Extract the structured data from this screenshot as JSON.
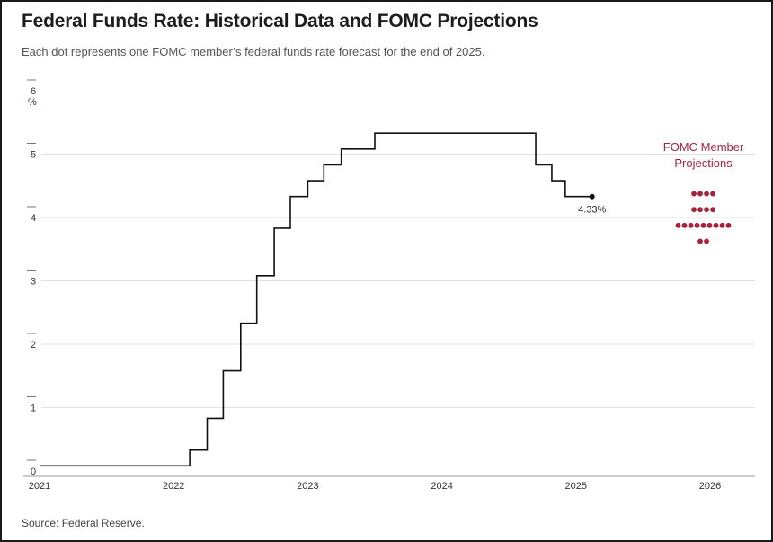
{
  "title": "Federal Funds Rate: Historical Data and FOMC Projections",
  "subtitle": "Each dot represents one FOMC member’s federal funds rate forecast for the end of 2025.",
  "source": "Source: Federal Reserve.",
  "colors": {
    "line": "#111111",
    "dots": "#a8233a",
    "grid": "#e2e2e2"
  },
  "chart_data": {
    "type": "line",
    "title": "Federal Funds Rate: Historical Data and FOMC Projections",
    "xlabel": "",
    "ylabel": "%",
    "y_unit_label": "%",
    "xlim": [
      2021.0,
      2026.3
    ],
    "ylim": [
      0,
      6
    ],
    "grid": true,
    "x_ticks": [
      2021,
      2022,
      2023,
      2024,
      2025,
      2026
    ],
    "y_ticks": [
      0,
      1,
      2,
      3,
      4,
      5,
      6
    ],
    "series": [
      {
        "name": "",
        "step": true,
        "x": [
          2021.0,
          2022.12,
          2022.25,
          2022.37,
          2022.5,
          2022.62,
          2022.75,
          2022.87,
          2023.0,
          2023.12,
          2023.25,
          2023.5,
          2024.7,
          2024.82,
          2024.92,
          2025.12
        ],
        "y": [
          0.08,
          0.33,
          0.83,
          1.58,
          2.33,
          3.08,
          3.83,
          4.33,
          4.58,
          4.83,
          5.08,
          5.33,
          4.83,
          4.58,
          4.33,
          4.33
        ]
      }
    ],
    "end_label": {
      "x": 2025.12,
      "y": 4.33,
      "text": "4.33%"
    },
    "projections": {
      "label_lines": [
        "FOMC Member",
        "Projections"
      ],
      "year": 2025.95,
      "rows": [
        {
          "rate": 4.375,
          "count": 4
        },
        {
          "rate": 4.125,
          "count": 4
        },
        {
          "rate": 3.875,
          "count": 9
        },
        {
          "rate": 3.625,
          "count": 2
        }
      ]
    }
  }
}
